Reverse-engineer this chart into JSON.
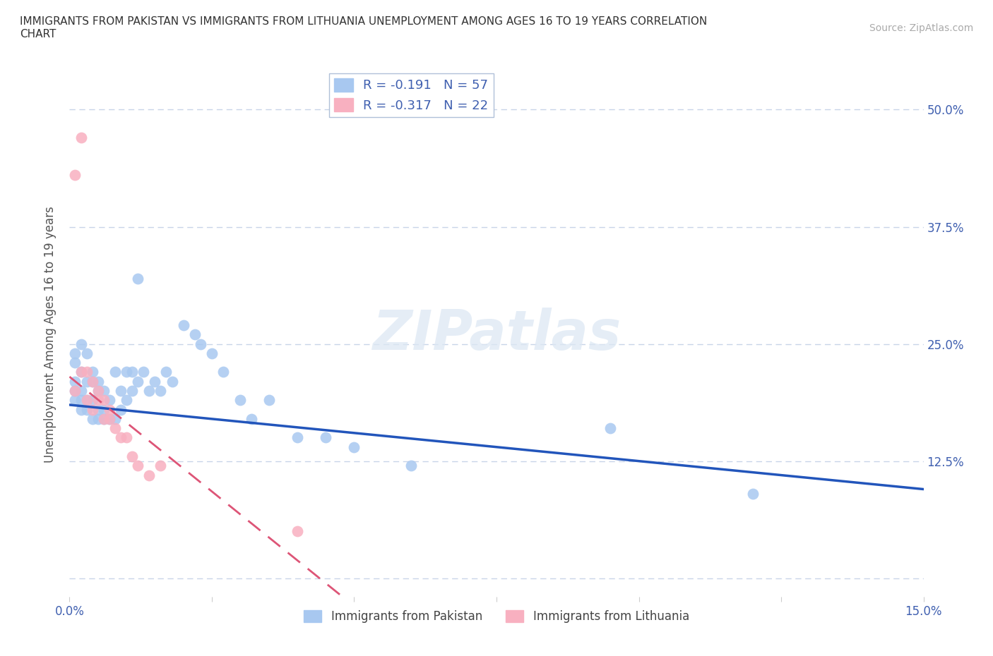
{
  "title": "IMMIGRANTS FROM PAKISTAN VS IMMIGRANTS FROM LITHUANIA UNEMPLOYMENT AMONG AGES 16 TO 19 YEARS CORRELATION\nCHART",
  "source_text": "Source: ZipAtlas.com",
  "ylabel": "Unemployment Among Ages 16 to 19 years",
  "xlim": [
    0.0,
    0.15
  ],
  "ylim": [
    -0.02,
    0.54
  ],
  "xticks": [
    0.0,
    0.025,
    0.05,
    0.075,
    0.1,
    0.125,
    0.15
  ],
  "xticklabels": [
    "0.0%",
    "",
    "",
    "",
    "",
    "",
    "15.0%"
  ],
  "yticks": [
    0.0,
    0.125,
    0.25,
    0.375,
    0.5
  ],
  "yticklabels_left": [
    "",
    "",
    "",
    "",
    ""
  ],
  "yticklabels_right": [
    "",
    "12.5%",
    "25.0%",
    "37.5%",
    "50.0%"
  ],
  "pakistan_color": "#a8c8f0",
  "lithuania_color": "#f8b0c0",
  "pakistan_line_color": "#2255bb",
  "lithuania_line_color": "#dd5577",
  "legend_r_pakistan": "R = -0.191",
  "legend_n_pakistan": "N = 57",
  "legend_r_lithuania": "R = -0.317",
  "legend_n_lithuania": "N = 22",
  "watermark": "ZIPatlas",
  "pakistan_x": [
    0.001,
    0.001,
    0.001,
    0.001,
    0.001,
    0.002,
    0.002,
    0.002,
    0.002,
    0.002,
    0.003,
    0.003,
    0.003,
    0.003,
    0.004,
    0.004,
    0.004,
    0.004,
    0.005,
    0.005,
    0.005,
    0.005,
    0.006,
    0.006,
    0.006,
    0.007,
    0.007,
    0.008,
    0.008,
    0.009,
    0.009,
    0.01,
    0.01,
    0.011,
    0.011,
    0.012,
    0.012,
    0.013,
    0.014,
    0.015,
    0.016,
    0.017,
    0.018,
    0.02,
    0.022,
    0.023,
    0.025,
    0.027,
    0.03,
    0.032,
    0.035,
    0.04,
    0.045,
    0.05,
    0.06,
    0.095,
    0.12
  ],
  "pakistan_y": [
    0.19,
    0.2,
    0.21,
    0.23,
    0.24,
    0.18,
    0.19,
    0.2,
    0.22,
    0.25,
    0.18,
    0.19,
    0.21,
    0.24,
    0.17,
    0.19,
    0.21,
    0.22,
    0.17,
    0.18,
    0.2,
    0.21,
    0.17,
    0.18,
    0.2,
    0.17,
    0.19,
    0.17,
    0.22,
    0.18,
    0.2,
    0.19,
    0.22,
    0.2,
    0.22,
    0.21,
    0.32,
    0.22,
    0.2,
    0.21,
    0.2,
    0.22,
    0.21,
    0.27,
    0.26,
    0.25,
    0.24,
    0.22,
    0.19,
    0.17,
    0.19,
    0.15,
    0.15,
    0.14,
    0.12,
    0.16,
    0.09
  ],
  "lithuania_x": [
    0.001,
    0.001,
    0.002,
    0.002,
    0.003,
    0.003,
    0.004,
    0.004,
    0.005,
    0.005,
    0.006,
    0.006,
    0.007,
    0.007,
    0.008,
    0.009,
    0.01,
    0.011,
    0.012,
    0.014,
    0.016,
    0.04
  ],
  "lithuania_y": [
    0.43,
    0.2,
    0.47,
    0.22,
    0.22,
    0.19,
    0.21,
    0.18,
    0.2,
    0.19,
    0.19,
    0.17,
    0.18,
    0.17,
    0.16,
    0.15,
    0.15,
    0.13,
    0.12,
    0.11,
    0.12,
    0.05
  ],
  "grid_color": "#c8d4e8",
  "background_color": "#ffffff",
  "tick_color": "#4060b0",
  "fig_width": 14.06,
  "fig_height": 9.3,
  "pak_line_x0": 0.0,
  "pak_line_x1": 0.15,
  "pak_line_y0": 0.185,
  "pak_line_y1": 0.095,
  "lit_line_x0": 0.0,
  "lit_line_x1": 0.048,
  "lit_line_y0": 0.215,
  "lit_line_y1": -0.02
}
